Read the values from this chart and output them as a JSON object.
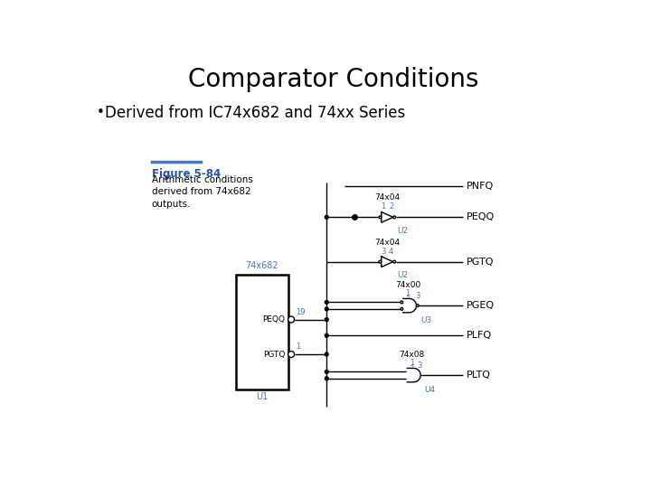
{
  "title": "Comparator Conditions",
  "title_fontsize": 20,
  "title_color": "#000000",
  "bullet_text": "Derived from IC74x682 and 74xx Series",
  "bullet_fontsize": 12,
  "bullet_color": "#000000",
  "figure_label": "Figure 5-84",
  "figure_label_color": "#2255aa",
  "figure_desc": "Arithmetic conditions\nderived from 74x682\noutputs.",
  "figure_desc_color": "#000000",
  "figure_desc_fontsize": 7.5,
  "bg_color": "#ffffff",
  "line_color": "#000000",
  "blue_color": "#4477bb",
  "gate_label_color": "#4477bb",
  "ic_label": "74x682",
  "u1_label": "U1"
}
